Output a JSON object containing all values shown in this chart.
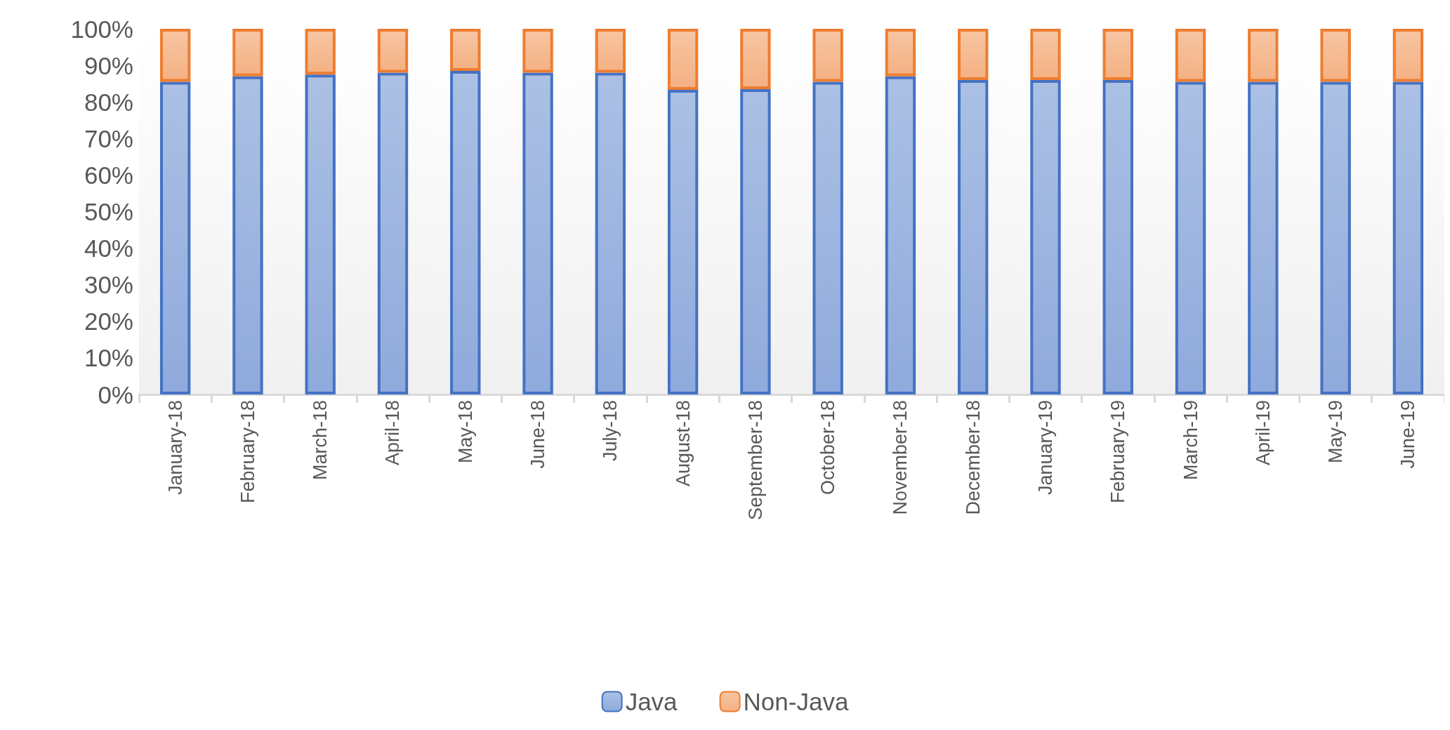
{
  "chart_data": {
    "type": "bar",
    "stacked": true,
    "categories": [
      "January-18",
      "February-18",
      "March-18",
      "April-18",
      "May-18",
      "June-18",
      "July-18",
      "August-18",
      "September-18",
      "October-18",
      "November-18",
      "December-18",
      "January-19",
      "February-19",
      "March-19",
      "April-19",
      "May-19",
      "June-19"
    ],
    "series": [
      {
        "name": "Java",
        "color": "#4472c4",
        "values": [
          85.5,
          87,
          87.5,
          88,
          88.5,
          88,
          88,
          83.3,
          83.5,
          85.5,
          87,
          86,
          86,
          86,
          85.5,
          85.5,
          85.5,
          85.5
        ]
      },
      {
        "name": "Non-Java",
        "color": "#ed7d31",
        "values": [
          14.5,
          13,
          12.5,
          12,
          11.5,
          12,
          12,
          16.7,
          16.5,
          14.5,
          13,
          14,
          14,
          14,
          14.5,
          14.5,
          14.5,
          14.5
        ]
      }
    ],
    "ylim": [
      0,
      100
    ],
    "yticks": [
      {
        "value": 0,
        "label": "0%"
      },
      {
        "value": 10,
        "label": "10%"
      },
      {
        "value": 20,
        "label": "20%"
      },
      {
        "value": 30,
        "label": "30%"
      },
      {
        "value": 40,
        "label": "40%"
      },
      {
        "value": 50,
        "label": "50%"
      },
      {
        "value": 60,
        "label": "60%"
      },
      {
        "value": 70,
        "label": "70%"
      },
      {
        "value": 80,
        "label": "80%"
      },
      {
        "value": 90,
        "label": "90%"
      },
      {
        "value": 100,
        "label": "100%"
      }
    ],
    "grid": false,
    "legend": "bottom"
  }
}
